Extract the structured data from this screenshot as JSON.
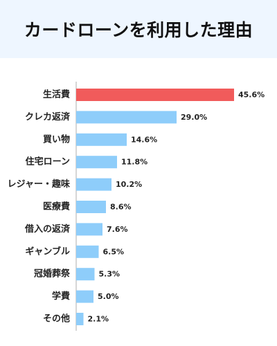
{
  "title": "カードローンを利用した理由",
  "colors": {
    "highlight": "#f15b5b",
    "bar": "#8ecdfa",
    "axis": "#c8c8c8",
    "title_bg": "#eef6ff"
  },
  "chart_data": {
    "type": "bar",
    "orientation": "horizontal",
    "title": "カードローンを利用した理由",
    "categories": [
      "生活費",
      "クレカ返済",
      "買い物",
      "住宅ローン",
      "レジャー・趣味",
      "医療費",
      "借入の返済",
      "ギャンブル",
      "冠婚葬祭",
      "学費",
      "その他"
    ],
    "values": [
      45.6,
      29.0,
      14.6,
      11.8,
      10.2,
      8.6,
      7.6,
      6.5,
      5.3,
      5.0,
      2.1
    ],
    "value_labels": [
      "45.6%",
      "29.0%",
      "14.6%",
      "11.8%",
      "10.2%",
      "8.6%",
      "7.6%",
      "6.5%",
      "5.3%",
      "5.0%",
      "2.1%"
    ],
    "xlim": [
      0,
      50
    ],
    "highlight_index": 0,
    "grid": false,
    "xlabel": "",
    "ylabel": ""
  }
}
